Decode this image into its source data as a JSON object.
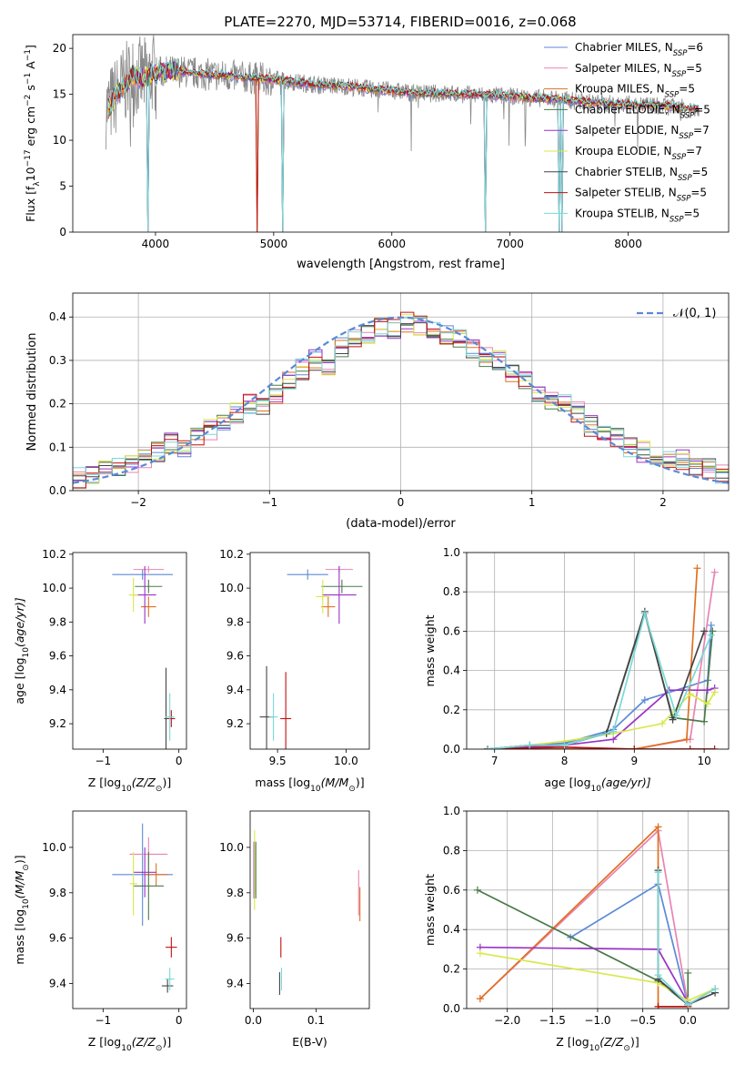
{
  "figure": {
    "title": "PLATE=2270, MJD=53714, FIBERID=0016, z=0.068"
  },
  "models": [
    {
      "label": "Chabrier MILES, N$_{SSP}$=6",
      "prefix": "Chabrier MILES, N",
      "sub": "SSP",
      "suffix": "=6",
      "color": "#5b8ad6"
    },
    {
      "label": "Salpeter MILES, N$_{SSP}$=5",
      "prefix": "Salpeter MILES, N",
      "sub": "SSP",
      "suffix": "=5",
      "color": "#e884b4"
    },
    {
      "label": "Kroupa MILES, N$_{SSP}$=5",
      "prefix": "Kroupa MILES, N",
      "sub": "SSP",
      "suffix": "=5",
      "color": "#e07020"
    },
    {
      "label": "Chabrier ELODIE, N$_{SSP}$=5",
      "prefix": "Chabrier ELODIE, N",
      "sub": "SSP",
      "suffix": "=5",
      "color": "#4a7a4a"
    },
    {
      "label": "Salpeter ELODIE, N$_{SSP}$=7",
      "prefix": "Salpeter ELODIE, N",
      "sub": "SSP",
      "suffix": "=7",
      "color": "#9a32c8"
    },
    {
      "label": "Kroupa ELODIE, N$_{SSP}$=7",
      "prefix": "Kroupa ELODIE, N",
      "sub": "SSP",
      "suffix": "=7",
      "color": "#d8e84a"
    },
    {
      "label": "Chabrier STELIB, N$_{SSP}$=5",
      "prefix": "Chabrier STELIB, N",
      "sub": "SSP",
      "suffix": "=5",
      "color": "#444444"
    },
    {
      "label": "Salpeter STELIB, N$_{SSP}$=5",
      "prefix": "Salpeter STELIB, N",
      "sub": "SSP",
      "suffix": "=5",
      "color": "#c01010"
    },
    {
      "label": "Kroupa STELIB, N$_{SSP}$=5",
      "prefix": "Kroupa STELIB, N",
      "sub": "SSP",
      "suffix": "=5",
      "color": "#7ad8d8"
    }
  ],
  "chart_data": [
    {
      "id": "spectrum",
      "type": "line",
      "title": "PLATE=2270, MJD=53714, FIBERID=0016, z=0.068",
      "xlabel": "wavelength [Angstrom, rest frame]",
      "ylabel_prefix": "Flux [f",
      "ylabel_sub": "λ",
      "ylabel_mid": "10",
      "ylabel_sup1": "−17",
      "ylabel_mid2": " erg cm",
      "ylabel_sup2": "−2",
      "ylabel_mid3": " s",
      "ylabel_sup3": "−1",
      "ylabel_mid4": " A",
      "ylabel_sup4": "−1",
      "ylabel_end": "]",
      "xlim": [
        3300,
        8850
      ],
      "ylim": [
        0,
        21.5
      ],
      "xticks": [
        4000,
        5000,
        6000,
        7000,
        8000
      ],
      "yticks": [
        0,
        5,
        10,
        15,
        20
      ],
      "legend": "top-right",
      "observed_color": "#888888",
      "continuum": [
        [
          3600,
          13.5
        ],
        [
          3700,
          15.5
        ],
        [
          3800,
          17.0
        ],
        [
          3900,
          16.8
        ],
        [
          4000,
          17.4
        ],
        [
          4200,
          17.5
        ],
        [
          4400,
          17.2
        ],
        [
          4600,
          17.0
        ],
        [
          4800,
          16.8
        ],
        [
          5000,
          16.6
        ],
        [
          5200,
          16.3
        ],
        [
          5400,
          16.0
        ],
        [
          5600,
          15.9
        ],
        [
          5800,
          15.6
        ],
        [
          6000,
          15.4
        ],
        [
          6200,
          15.1
        ],
        [
          6400,
          15.1
        ],
        [
          6600,
          15.0
        ],
        [
          6800,
          14.9
        ],
        [
          7000,
          14.8
        ],
        [
          7200,
          14.6
        ],
        [
          7400,
          14.5
        ],
        [
          7600,
          14.2
        ],
        [
          7800,
          14.0
        ],
        [
          8000,
          13.9
        ],
        [
          8200,
          13.8
        ],
        [
          8400,
          13.6
        ],
        [
          8600,
          13.4
        ]
      ],
      "dips": [
        [
          3934,
          0
        ],
        [
          4862,
          1
        ],
        [
          5075,
          0
        ],
        [
          6790,
          0
        ],
        [
          7420,
          0
        ],
        [
          7440,
          0
        ]
      ]
    },
    {
      "id": "residuals",
      "type": "histogram",
      "xlabel": "(data-model)/error",
      "ylabel": "Normed distribution",
      "xlim": [
        -2.5,
        2.5
      ],
      "ylim": [
        0,
        0.455
      ],
      "xticks": [
        -2,
        -1,
        0,
        1,
        2
      ],
      "yticks": [
        0.0,
        0.1,
        0.2,
        0.3,
        0.4
      ],
      "grid": true,
      "legend": "top-right",
      "reference_label": "𝒩(0, 1)",
      "reference_color": "#5b8ad6",
      "bin_edges": [
        -2.5,
        -2.4,
        -2.3,
        -2.2,
        -2.1,
        -2.0,
        -1.9,
        -1.8,
        -1.7,
        -1.6,
        -1.5,
        -1.4,
        -1.3,
        -1.2,
        -1.1,
        -1.0,
        -0.9,
        -0.8,
        -0.7,
        -0.6,
        -0.5,
        -0.4,
        -0.3,
        -0.2,
        -0.1,
        0.0,
        0.1,
        0.2,
        0.3,
        0.4,
        0.5,
        0.6,
        0.7,
        0.8,
        0.9,
        1.0,
        1.1,
        1.2,
        1.3,
        1.4,
        1.5,
        1.6,
        1.7,
        1.8,
        1.9,
        2.0,
        2.1,
        2.2,
        2.3,
        2.4,
        2.5
      ],
      "base": [
        0.03,
        0.04,
        0.045,
        0.05,
        0.06,
        0.07,
        0.09,
        0.11,
        0.1,
        0.12,
        0.14,
        0.16,
        0.18,
        0.2,
        0.19,
        0.22,
        0.25,
        0.28,
        0.3,
        0.29,
        0.33,
        0.35,
        0.36,
        0.38,
        0.37,
        0.39,
        0.38,
        0.37,
        0.36,
        0.35,
        0.33,
        0.31,
        0.3,
        0.27,
        0.25,
        0.23,
        0.21,
        0.2,
        0.18,
        0.15,
        0.13,
        0.12,
        0.1,
        0.09,
        0.08,
        0.075,
        0.07,
        0.055,
        0.05,
        0.04
      ]
    },
    {
      "id": "age-vs-z",
      "type": "scatter",
      "xlabel_prefix": "Z [log",
      "xlabel_sub": "10",
      "xlabel_end": "(Z/Z",
      "xlabel_sun": "⊙",
      "xlabel_close": ")]",
      "ylabel_prefix": "age  [log",
      "ylabel_sub": "10",
      "ylabel_end": "(age/yr)]",
      "xlim": [
        -1.4,
        0.1
      ],
      "ylim": [
        9.05,
        10.21
      ],
      "xticks": [
        -1,
        0
      ],
      "yticks": [
        9.2,
        9.4,
        9.6,
        9.8,
        10.0,
        10.2
      ],
      "points": [
        [
          -0.48,
          10.08,
          0.8,
          0.06,
          0
        ],
        [
          -0.4,
          10.11,
          0.4,
          0.04,
          1
        ],
        [
          -0.4,
          9.89,
          0.2,
          0.12,
          2
        ],
        [
          -0.4,
          10.01,
          0.36,
          0.08,
          3
        ],
        [
          -0.45,
          9.96,
          0.3,
          0.34,
          4
        ],
        [
          -0.6,
          9.96,
          0.12,
          0.2,
          5
        ],
        [
          -0.17,
          9.23,
          0.05,
          0.6,
          6
        ],
        [
          -0.1,
          9.23,
          0.1,
          0.1,
          7
        ],
        [
          -0.12,
          9.24,
          0.12,
          0.28,
          8
        ]
      ]
    },
    {
      "id": "age-vs-mass",
      "type": "scatter",
      "xlabel_prefix": "mass [log",
      "xlabel_sub": "10",
      "xlabel_end": "(M/M",
      "xlabel_sun": "⊙",
      "xlabel_close": ")]",
      "xlim": [
        9.3,
        10.17
      ],
      "ylim": [
        9.05,
        10.21
      ],
      "xticks": [
        9.5,
        10.0
      ],
      "yticks": [
        9.2,
        9.4,
        9.6,
        9.8,
        10.0,
        10.2
      ],
      "points": [
        [
          9.72,
          10.08,
          0.3,
          0.06,
          0
        ],
        [
          9.95,
          10.11,
          0.2,
          0.04,
          1
        ],
        [
          9.87,
          9.89,
          0.1,
          0.12,
          2
        ],
        [
          9.97,
          10.01,
          0.3,
          0.08,
          3
        ],
        [
          9.95,
          9.96,
          0.25,
          0.34,
          4
        ],
        [
          9.83,
          9.95,
          0.1,
          0.2,
          5
        ],
        [
          9.42,
          9.24,
          0.1,
          0.6,
          6
        ],
        [
          9.56,
          9.23,
          0.08,
          0.55,
          7
        ],
        [
          9.47,
          9.24,
          0.06,
          0.28,
          8
        ]
      ]
    },
    {
      "id": "weight-vs-age",
      "type": "line",
      "xlabel_prefix": "age  [log",
      "xlabel_sub": "10",
      "xlabel_end": "(age/yr)]",
      "ylabel": "mass weight",
      "xlim": [
        6.6,
        10.35
      ],
      "ylim": [
        0,
        1.0
      ],
      "xticks": [
        7,
        8,
        9,
        10
      ],
      "yticks": [
        0.0,
        0.2,
        0.4,
        0.6,
        0.8,
        1.0
      ],
      "grid": true,
      "series": [
        {
          "model": 0,
          "x": [
            6.9,
            7.5,
            8.0,
            8.7,
            9.15,
            10.05,
            10.1
          ],
          "y": [
            0.0,
            0.02,
            0.03,
            0.1,
            0.25,
            0.35,
            0.63
          ]
        },
        {
          "model": 1,
          "x": [
            6.9,
            8.0,
            9.0,
            9.8,
            10.15
          ],
          "y": [
            0.0,
            0.0,
            0.0,
            0.05,
            0.9
          ]
        },
        {
          "model": 2,
          "x": [
            6.9,
            8.0,
            9.0,
            9.75,
            9.9
          ],
          "y": [
            0.0,
            0.0,
            0.0,
            0.05,
            0.92
          ]
        },
        {
          "model": 3,
          "x": [
            6.9,
            8.0,
            8.6,
            9.15,
            9.55,
            10.0,
            10.12
          ],
          "y": [
            0.0,
            0.02,
            0.08,
            0.69,
            0.16,
            0.14,
            0.6
          ]
        },
        {
          "model": 4,
          "x": [
            6.9,
            8.0,
            8.7,
            9.5,
            10.05,
            10.15
          ],
          "y": [
            0.0,
            0.02,
            0.05,
            0.3,
            0.3,
            0.31
          ]
        },
        {
          "model": 5,
          "x": [
            6.9,
            7.5,
            8.0,
            8.7,
            9.4,
            9.8,
            10.05,
            10.15
          ],
          "y": [
            0.0,
            0.02,
            0.04,
            0.08,
            0.13,
            0.28,
            0.23,
            0.29
          ]
        },
        {
          "model": 6,
          "x": [
            6.9,
            7.5,
            8.0,
            8.6,
            9.15,
            9.55,
            10.0
          ],
          "y": [
            0.0,
            0.02,
            0.02,
            0.08,
            0.7,
            0.15,
            0.6
          ]
        },
        {
          "model": 7,
          "x": [
            6.9,
            8.0,
            9.0,
            9.8,
            10.15
          ],
          "y": [
            0.0,
            0.01,
            0.0,
            0.0,
            0.0
          ]
        },
        {
          "model": 8,
          "x": [
            6.9,
            7.5,
            8.0,
            8.7,
            9.15,
            9.6,
            10.1
          ],
          "y": [
            0.0,
            0.02,
            0.02,
            0.09,
            0.69,
            0.17,
            0.58
          ]
        }
      ]
    },
    {
      "id": "mass-vs-z",
      "type": "scatter",
      "xlabel_prefix": "Z [log",
      "xlabel_sub": "10",
      "xlabel_end": "(Z/Z",
      "xlabel_sun": "⊙",
      "xlabel_close": ")]",
      "ylabel_prefix": "mass [log",
      "ylabel_sub": "10",
      "ylabel_end": "(M/M",
      "ylabel_sun": "⊙",
      "ylabel_close": ")]",
      "xlim": [
        -1.4,
        0.1
      ],
      "ylim": [
        9.29,
        10.16
      ],
      "xticks": [
        -1,
        0
      ],
      "yticks": [
        9.4,
        9.6,
        9.8,
        10.0
      ],
      "points": [
        [
          -0.48,
          9.88,
          0.8,
          0.45,
          0
        ],
        [
          -0.4,
          9.97,
          0.5,
          0.15,
          1
        ],
        [
          -0.3,
          9.88,
          0.3,
          0.1,
          2
        ],
        [
          -0.4,
          9.83,
          0.4,
          0.3,
          3
        ],
        [
          -0.45,
          9.89,
          0.3,
          0.22,
          4
        ],
        [
          -0.6,
          9.84,
          0.1,
          0.28,
          5
        ],
        [
          -0.15,
          9.39,
          0.15,
          0.06,
          6
        ],
        [
          -0.1,
          9.56,
          0.15,
          0.09,
          7
        ],
        [
          -0.12,
          9.42,
          0.12,
          0.1,
          8
        ]
      ]
    },
    {
      "id": "mass-vs-ebv",
      "type": "scatter",
      "xlabel": "E(B-V)",
      "xlim": [
        -0.005,
        0.185
      ],
      "ylim": [
        9.29,
        10.16
      ],
      "xticks": [
        0.0,
        0.1
      ],
      "yticks": [
        9.4,
        9.6,
        9.8,
        10.0
      ],
      "points": [
        [
          0.002,
          9.9,
          0.0,
          0.22,
          0
        ],
        [
          0.168,
          9.8,
          0.0,
          0.2,
          1
        ],
        [
          0.17,
          9.75,
          0.0,
          0.15,
          2
        ],
        [
          0.004,
          9.9,
          0.0,
          0.25,
          3
        ],
        [
          0.001,
          9.9,
          0.0,
          0.25,
          4
        ],
        [
          0.002,
          9.9,
          0.0,
          0.35,
          5
        ],
        [
          0.042,
          9.4,
          0.0,
          0.1,
          6
        ],
        [
          0.044,
          9.56,
          0.0,
          0.09,
          7
        ],
        [
          0.045,
          9.42,
          0.0,
          0.1,
          8
        ]
      ]
    },
    {
      "id": "weight-vs-z",
      "type": "line",
      "xlabel_prefix": "Z [log",
      "xlabel_sub": "10",
      "xlabel_end": "(Z/Z",
      "xlabel_sun": "⊙",
      "xlabel_close": ")]",
      "ylabel": "mass weight",
      "xlim": [
        -2.45,
        0.45
      ],
      "ylim": [
        0,
        1.0
      ],
      "xticks": [
        -2.0,
        -1.5,
        -1.0,
        -0.5,
        0.0
      ],
      "yticks": [
        0.0,
        0.2,
        0.4,
        0.6,
        0.8,
        1.0
      ],
      "grid": true,
      "series": [
        {
          "model": 0,
          "x": [
            -1.3,
            -0.33,
            0.0,
            0.3
          ],
          "y": [
            0.36,
            0.63,
            0.02,
            0.1
          ]
        },
        {
          "model": 1,
          "x": [
            -2.3,
            -0.33,
            0.0,
            0.3
          ],
          "y": [
            0.05,
            0.9,
            0.02,
            0.1
          ]
        },
        {
          "model": 2,
          "x": [
            -2.3,
            -0.33,
            -0.33,
            0.0
          ],
          "y": [
            0.05,
            0.92,
            0.01,
            0.01
          ]
        },
        {
          "model": 3,
          "x": [
            -2.33,
            -0.33,
            0.0,
            0.0
          ],
          "y": [
            0.6,
            0.14,
            0.02,
            0.18
          ]
        },
        {
          "model": 4,
          "x": [
            -2.3,
            -0.33,
            0.0
          ],
          "y": [
            0.31,
            0.3,
            0.03
          ]
        },
        {
          "model": 5,
          "x": [
            -2.3,
            -0.33,
            0.0,
            0.3
          ],
          "y": [
            0.28,
            0.13,
            0.04,
            0.1
          ]
        },
        {
          "model": 6,
          "x": [
            -0.33,
            -0.33,
            0.0,
            0.3
          ],
          "y": [
            0.7,
            0.15,
            0.02,
            0.08
          ]
        },
        {
          "model": 7,
          "x": [
            -0.33,
            0.0
          ],
          "y": [
            0.01,
            0.01
          ]
        },
        {
          "model": 8,
          "x": [
            -0.33,
            -0.33,
            0.0,
            0.3
          ],
          "y": [
            0.69,
            0.17,
            0.02,
            0.1
          ]
        }
      ]
    }
  ]
}
